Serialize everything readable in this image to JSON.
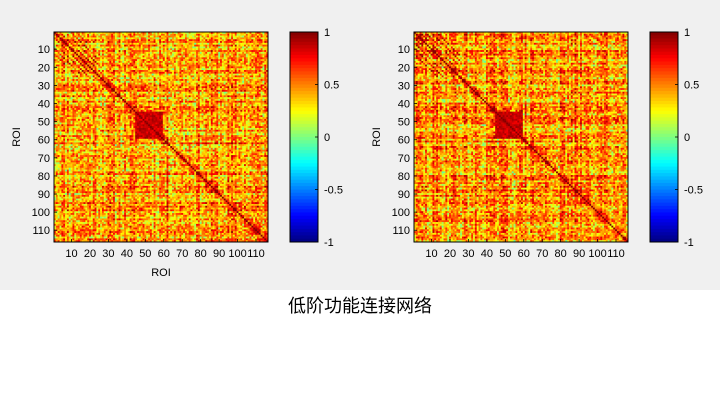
{
  "caption": "低阶功能连接网络",
  "chart_data": [
    {
      "type": "heatmap",
      "title": "",
      "xlabel": "ROI",
      "ylabel": "ROI",
      "n_roi": 116,
      "x_ticks": [
        10,
        20,
        30,
        40,
        50,
        60,
        70,
        80,
        90,
        100,
        110
      ],
      "x_tick_labels": [
        "10",
        "20",
        "30",
        "40",
        "50",
        "60",
        "70",
        "80",
        "90",
        "100",
        "110"
      ],
      "y_ticks": [
        10,
        20,
        30,
        40,
        50,
        60,
        70,
        80,
        90,
        100,
        110
      ],
      "y_tick_labels": [
        "10",
        "20",
        "30",
        "40",
        "50",
        "60",
        "70",
        "80",
        "90",
        "100",
        "110"
      ],
      "color_range": [
        -1,
        1
      ],
      "colorbar_ticks": [
        1,
        0.5,
        0,
        -0.5,
        -1
      ],
      "colorbar_tick_labels": [
        "1",
        "0.5",
        "0",
        "-0.5",
        "-1"
      ],
      "colormap": "jet",
      "diagonal_value": 1,
      "background_mean": 0.45,
      "high_block_range": [
        44,
        58
      ],
      "high_block_value": 0.85,
      "seed": 11
    },
    {
      "type": "heatmap",
      "title": "",
      "xlabel": "",
      "ylabel": "ROI",
      "n_roi": 116,
      "x_ticks": [
        10,
        20,
        30,
        40,
        50,
        60,
        70,
        80,
        90,
        100,
        110
      ],
      "x_tick_labels": [
        "10",
        "20",
        "30",
        "40",
        "50",
        "60",
        "70",
        "80",
        "90",
        "100",
        "110"
      ],
      "y_ticks": [
        10,
        20,
        30,
        40,
        50,
        60,
        70,
        80,
        90,
        100,
        110
      ],
      "y_tick_labels": [
        "10",
        "20",
        "30",
        "40",
        "50",
        "60",
        "70",
        "80",
        "90",
        "100",
        "110"
      ],
      "color_range": [
        -1,
        1
      ],
      "colorbar_ticks": [
        1,
        0.5,
        0,
        -0.5,
        -1
      ],
      "colorbar_tick_labels": [
        "1",
        "0.5",
        "0",
        "-0.5",
        "-1"
      ],
      "colormap": "jet",
      "diagonal_value": 1,
      "background_mean": 0.45,
      "high_block_range": [
        44,
        58
      ],
      "high_block_value": 0.85,
      "seed": 29
    }
  ]
}
